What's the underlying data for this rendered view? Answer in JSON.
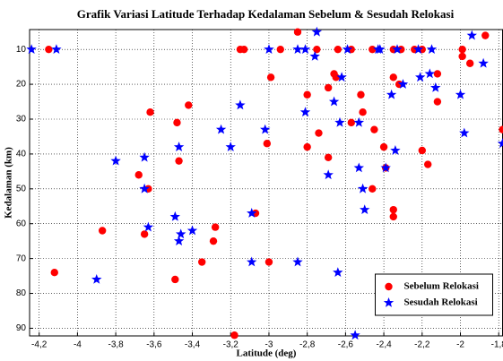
{
  "chart_data": {
    "type": "scatter",
    "title": "Grafik Variasi Latitude Terhadap Kedalaman Sebelum & Sesudah Relokasi",
    "xlabel": "Latitude (deg)",
    "ylabel": "Kedalaman (km)",
    "xlim": [
      -4.25,
      -1.78
    ],
    "ylim": [
      4.3,
      92.2
    ],
    "y_reversed": true,
    "grid": true,
    "legend": "lower right",
    "xticks": [
      {
        "value": -4.2,
        "label": "-4,2"
      },
      -4,
      {
        "value": -3.8,
        "label": "-3,8"
      },
      {
        "value": -3.6,
        "label": "-3,6"
      },
      {
        "value": -3.4,
        "label": "-3,4"
      },
      {
        "value": -3.2,
        "label": "-3,2"
      },
      -3,
      {
        "value": -2.8,
        "label": "-2,8"
      },
      {
        "value": -2.6,
        "label": "-2,6"
      },
      {
        "value": -2.4,
        "label": "-2,4"
      },
      {
        "value": -2.2,
        "label": "-2,2"
      },
      -2,
      {
        "value": -1.8,
        "label": "-1,8"
      }
    ],
    "yticks": [
      10,
      20,
      30,
      40,
      50,
      60,
      70,
      80,
      90
    ],
    "series": [
      {
        "name": "Sebelum Relokasi",
        "color": "#ff0000",
        "marker": "circle",
        "x": [
          -4.15,
          -4.12,
          -3.87,
          -3.68,
          -3.65,
          -3.63,
          -3.62,
          -3.48,
          -3.47,
          -3.49,
          -3.42,
          -3.35,
          -3.29,
          -3.28,
          -3.18,
          -3.15,
          -3.13,
          -3.07,
          -3.01,
          -3.0,
          -2.99,
          -2.94,
          -2.85,
          -2.8,
          -2.8,
          -2.75,
          -2.74,
          -2.69,
          -2.69,
          -2.66,
          -2.65,
          -2.64,
          -2.57,
          -2.57,
          -2.52,
          -2.51,
          -2.46,
          -2.46,
          -2.45,
          -2.4,
          -2.39,
          -2.35,
          -2.35,
          -2.35,
          -2.35,
          -2.32,
          -2.31,
          -2.24,
          -2.2,
          -2.2,
          -2.17,
          -2.12,
          -2.12,
          -1.99,
          -1.99,
          -1.95,
          -1.87,
          -1.78
        ],
        "values": [
          10,
          74,
          62,
          46,
          63,
          50,
          28,
          31,
          42,
          76,
          26,
          71,
          65,
          61,
          92,
          10,
          10,
          57,
          37,
          71,
          18,
          10,
          5,
          23,
          38,
          10,
          34,
          21,
          41,
          17,
          18,
          10,
          10,
          31,
          23,
          28,
          10,
          50,
          33,
          38,
          44,
          10,
          58,
          56,
          18,
          20,
          10,
          10,
          39,
          10,
          43,
          17,
          25,
          10,
          12,
          14,
          6,
          33
        ]
      },
      {
        "name": "Sesudah Relokasi",
        "color": "#0000ff",
        "marker": "star",
        "x": [
          -4.24,
          -4.11,
          -3.9,
          -3.8,
          -3.65,
          -3.65,
          -3.63,
          -3.49,
          -3.47,
          -3.47,
          -3.46,
          -3.4,
          -3.25,
          -3.2,
          -3.15,
          -3.09,
          -3.09,
          -3.02,
          -3.0,
          -2.85,
          -2.85,
          -2.81,
          -2.81,
          -2.76,
          -2.75,
          -2.69,
          -2.66,
          -2.64,
          -2.63,
          -2.62,
          -2.59,
          -2.53,
          -2.53,
          -2.51,
          -2.5,
          -2.55,
          -2.43,
          -2.42,
          -2.39,
          -2.36,
          -2.34,
          -2.33,
          -2.3,
          -2.21,
          -2.22,
          -2.16,
          -2.15,
          -2.13,
          -2.0,
          -1.98,
          -1.94,
          -1.88,
          -1.78
        ],
        "values": [
          10,
          10,
          76,
          42,
          41,
          50,
          61,
          58,
          38,
          65,
          63,
          62,
          33,
          38,
          26,
          57,
          71,
          33,
          10,
          71,
          10,
          28,
          10,
          12,
          5,
          46,
          25,
          74,
          31,
          18,
          10,
          31,
          44,
          50,
          56,
          92,
          10,
          10,
          44,
          23,
          39,
          10,
          20,
          18,
          10,
          17,
          10,
          21,
          23,
          34,
          6,
          14,
          37
        ]
      }
    ]
  }
}
